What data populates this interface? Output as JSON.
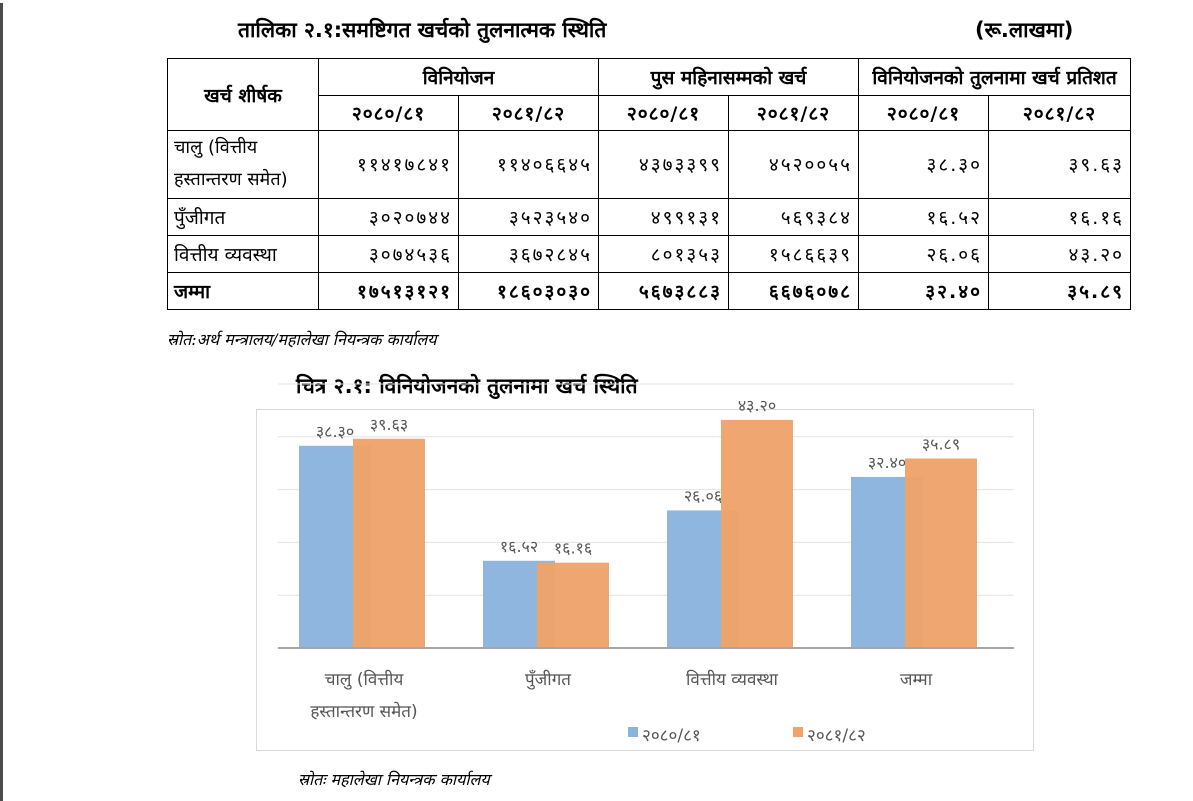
{
  "table": {
    "title": "तालिका २.१:समष्टिगत खर्चको तुलनात्मक स्थिति",
    "unit": "(रू.लाखमा)",
    "header_first": "खर्च शीर्षक",
    "groups": [
      "विनियोजन",
      "पुस महिनासम्मको खर्च",
      "विनियोजनको तुलनामा खर्च प्रतिशत"
    ],
    "years": [
      "२०८०/८१",
      "२०८१/८२",
      "२०८०/८१",
      "२०८१/८२",
      "२०८०/८१",
      "२०८१/८२"
    ],
    "rows": [
      {
        "label": "चालु (वित्तीय हस्तान्तरण समेत)",
        "values": [
          "११४१७८४१",
          "११४०६६४५",
          "४३७३३९९",
          "४५२००५५",
          "३८.३०",
          "३९.६३"
        ]
      },
      {
        "label": "पुँजीगत",
        "values": [
          "३०२०७४४",
          "३५२३५४०",
          "४९९१३१",
          "५६९३८४",
          "१६.५२",
          "१६.१६"
        ]
      },
      {
        "label": "वित्तीय व्यवस्था",
        "values": [
          "३०७४५३६",
          "३६७२८४५",
          "८०१३५३",
          "१५८६६३९",
          "२६.०६",
          "४३.२०"
        ]
      },
      {
        "label": "जम्मा",
        "values": [
          "१७५१३१२१",
          "१८६०३०३०",
          "५६७३८८३",
          "६६७६०७८",
          "३२.४०",
          "३५.८९"
        ]
      }
    ],
    "source": "स्रोत:अर्थ मन्त्रालय/महालेखा नियन्त्रक कार्यालय"
  },
  "chart_title": "चित्र २.१: विनियोजनको तुलनामा खर्च स्थिति",
  "chart_source": "स्रोतः महालेखा नियन्त्रक कार्यालय",
  "chart_data": {
    "type": "bar",
    "title": "",
    "xlabel": "",
    "ylabel": "",
    "ylim": [
      0,
      50
    ],
    "grid": true,
    "legend_position": "bottom",
    "categories": [
      "चालु (वित्तीय हस्तान्तरण समेत)",
      "पुँजीगत",
      "वित्तीय व्यवस्था",
      "जम्मा"
    ],
    "category_lines": [
      [
        "चालु (वित्तीय",
        "हस्तान्तरण समेत)"
      ],
      [
        "पुँजीगत"
      ],
      [
        "वित्तीय व्यवस्था"
      ],
      [
        "जम्मा"
      ]
    ],
    "series": [
      {
        "name": "२०८०/८१",
        "values": [
          38.3,
          16.52,
          26.06,
          32.4
        ],
        "labels": [
          "३८.३०",
          "१६.५२",
          "२६.०६",
          "३२.४०"
        ],
        "color": "#8ab4dd"
      },
      {
        "name": "२०८१/८२",
        "values": [
          39.63,
          16.16,
          43.2,
          35.89
        ],
        "labels": [
          "३९.६३",
          "१६.१६",
          "४३.२०",
          "३५.८९"
        ],
        "color": "#f0a36b"
      }
    ]
  }
}
